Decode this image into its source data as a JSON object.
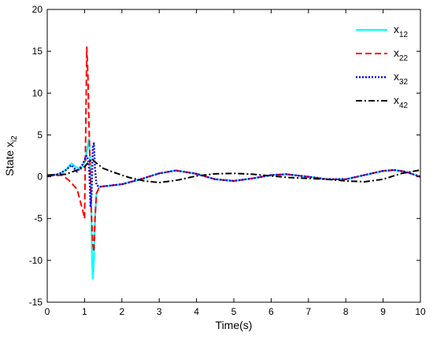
{
  "chart_data": {
    "type": "line",
    "xlabel": "Time(s)",
    "ylabel": {
      "main": "State x",
      "sub": "i2"
    },
    "xlim": [
      0,
      10
    ],
    "ylim": [
      -15,
      20
    ],
    "xticks": [
      "0",
      "1",
      "2",
      "3",
      "4",
      "5",
      "6",
      "7",
      "8",
      "9",
      "10"
    ],
    "yticks": [
      "-15",
      "-10",
      "-5",
      "0",
      "5",
      "10",
      "15",
      "20"
    ],
    "grid": false,
    "legend_position": "top-right",
    "series": [
      {
        "name": {
          "main": "x",
          "sub": "12"
        },
        "color": "#00ffff",
        "style": "solid",
        "points": [
          [
            0,
            0.1
          ],
          [
            0.3,
            0.3
          ],
          [
            0.5,
            0.8
          ],
          [
            0.65,
            1.6
          ],
          [
            0.75,
            1.2
          ],
          [
            0.9,
            0.9
          ],
          [
            1.0,
            1.8
          ],
          [
            1.08,
            3.5
          ],
          [
            1.12,
            4.5
          ],
          [
            1.15,
            2
          ],
          [
            1.18,
            -3
          ],
          [
            1.2,
            -10
          ],
          [
            1.22,
            -12.2
          ],
          [
            1.25,
            -10
          ],
          [
            1.28,
            -5
          ],
          [
            1.32,
            -2
          ],
          [
            1.4,
            -1.2
          ],
          [
            1.6,
            -1.1
          ],
          [
            2.0,
            -0.9
          ],
          [
            2.5,
            -0.3
          ],
          [
            3.0,
            0.4
          ],
          [
            3.45,
            0.75
          ],
          [
            4.0,
            0.35
          ],
          [
            4.5,
            -0.3
          ],
          [
            5.0,
            -0.5
          ],
          [
            5.5,
            -0.2
          ],
          [
            6.0,
            0.2
          ],
          [
            6.4,
            0.3
          ],
          [
            7.0,
            0.0
          ],
          [
            7.5,
            -0.3
          ],
          [
            8.0,
            -0.3
          ],
          [
            8.5,
            0.2
          ],
          [
            9.0,
            0.7
          ],
          [
            9.3,
            0.8
          ],
          [
            9.6,
            0.6
          ],
          [
            10,
            0.0
          ]
        ]
      },
      {
        "name": {
          "main": "x",
          "sub": "22"
        },
        "color": "#ff0000",
        "style": "dashed",
        "points": [
          [
            0,
            0.1
          ],
          [
            0.4,
            0.2
          ],
          [
            0.6,
            -0.5
          ],
          [
            0.8,
            -1.5
          ],
          [
            0.95,
            -4
          ],
          [
            1.0,
            -5
          ],
          [
            1.03,
            5
          ],
          [
            1.06,
            15.5
          ],
          [
            1.09,
            12
          ],
          [
            1.12,
            6
          ],
          [
            1.15,
            1
          ],
          [
            1.18,
            -4
          ],
          [
            1.22,
            -8
          ],
          [
            1.25,
            -9
          ],
          [
            1.28,
            -5
          ],
          [
            1.32,
            -2
          ],
          [
            1.4,
            -1.2
          ],
          [
            1.6,
            -1.1
          ],
          [
            2.0,
            -0.9
          ],
          [
            2.5,
            -0.3
          ],
          [
            3.0,
            0.4
          ],
          [
            3.45,
            0.75
          ],
          [
            4.0,
            0.35
          ],
          [
            4.5,
            -0.3
          ],
          [
            5.0,
            -0.5
          ],
          [
            5.5,
            -0.2
          ],
          [
            6.0,
            0.2
          ],
          [
            6.4,
            0.3
          ],
          [
            7.0,
            0.0
          ],
          [
            7.5,
            -0.3
          ],
          [
            8.0,
            -0.3
          ],
          [
            8.5,
            0.2
          ],
          [
            9.0,
            0.7
          ],
          [
            9.3,
            0.8
          ],
          [
            9.6,
            0.6
          ],
          [
            10,
            0.0
          ]
        ]
      },
      {
        "name": {
          "main": "x",
          "sub": "32"
        },
        "color": "#0000ff",
        "style": "dotted",
        "points": [
          [
            0,
            0.1
          ],
          [
            0.3,
            0.3
          ],
          [
            0.5,
            0.8
          ],
          [
            0.65,
            1.4
          ],
          [
            0.8,
            0.6
          ],
          [
            0.95,
            1.5
          ],
          [
            1.05,
            2.5
          ],
          [
            1.1,
            2.0
          ],
          [
            1.13,
            0.5
          ],
          [
            1.16,
            -3.5
          ],
          [
            1.19,
            -2
          ],
          [
            1.22,
            3.5
          ],
          [
            1.25,
            4
          ],
          [
            1.28,
            1
          ],
          [
            1.32,
            -1
          ],
          [
            1.4,
            -1.2
          ],
          [
            1.6,
            -1.1
          ],
          [
            2.0,
            -0.9
          ],
          [
            2.5,
            -0.3
          ],
          [
            3.0,
            0.4
          ],
          [
            3.45,
            0.75
          ],
          [
            4.0,
            0.35
          ],
          [
            4.5,
            -0.3
          ],
          [
            5.0,
            -0.5
          ],
          [
            5.5,
            -0.2
          ],
          [
            6.0,
            0.2
          ],
          [
            6.4,
            0.3
          ],
          [
            7.0,
            0.0
          ],
          [
            7.5,
            -0.3
          ],
          [
            8.0,
            -0.3
          ],
          [
            8.5,
            0.2
          ],
          [
            9.0,
            0.7
          ],
          [
            9.3,
            0.8
          ],
          [
            9.6,
            0.6
          ],
          [
            10,
            0.0
          ]
        ]
      },
      {
        "name": {
          "main": "x",
          "sub": "42"
        },
        "color": "#000000",
        "style": "dashdot",
        "points": [
          [
            0,
            0.2
          ],
          [
            0.5,
            0.3
          ],
          [
            0.8,
            0.8
          ],
          [
            1.0,
            1.2
          ],
          [
            1.1,
            1.7
          ],
          [
            1.2,
            2.1
          ],
          [
            1.3,
            1.7
          ],
          [
            1.5,
            1.0
          ],
          [
            1.8,
            0.5
          ],
          [
            2.2,
            -0.1
          ],
          [
            2.6,
            -0.5
          ],
          [
            3.0,
            -0.7
          ],
          [
            3.5,
            -0.4
          ],
          [
            4.0,
            0.1
          ],
          [
            4.5,
            0.35
          ],
          [
            5.0,
            0.4
          ],
          [
            5.5,
            0.3
          ],
          [
            6.0,
            0.1
          ],
          [
            6.5,
            -0.1
          ],
          [
            7.0,
            -0.2
          ],
          [
            7.5,
            -0.3
          ],
          [
            8.0,
            -0.5
          ],
          [
            8.5,
            -0.6
          ],
          [
            9.0,
            -0.3
          ],
          [
            9.5,
            0.4
          ],
          [
            10,
            0.8
          ]
        ]
      }
    ]
  }
}
